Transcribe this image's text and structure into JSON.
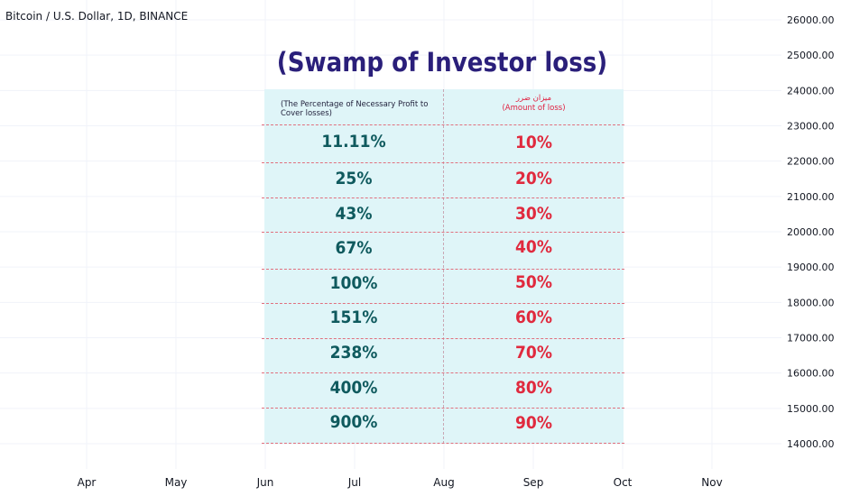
{
  "header": {
    "symbol": "Bitcoin / U.S. Dollar, 1D, BINANCE",
    "title": "(Swamp of Investor loss)"
  },
  "table": {
    "header_left": "(The Percentage of Necessary Profit to Cover losses)",
    "header_right_arabic": "میزان ضرر",
    "header_right_english": "(Amount of loss)",
    "rows": [
      {
        "profit": "11.11%",
        "loss": "10%"
      },
      {
        "profit": "25%",
        "loss": "20%"
      },
      {
        "profit": "43%",
        "loss": "30%"
      },
      {
        "profit": "67%",
        "loss": "40%"
      },
      {
        "profit": "100%",
        "loss": "50%"
      },
      {
        "profit": "151%",
        "loss": "60%"
      },
      {
        "profit": "238%",
        "loss": "70%"
      },
      {
        "profit": "400%",
        "loss": "80%"
      },
      {
        "profit": "900%",
        "loss": "90%"
      }
    ]
  },
  "colors": {
    "title": "#2a1f7a",
    "profit_text": "#0f5a5e",
    "loss_text": "#e02a3e",
    "table_bg": "#dff5f8",
    "separator": "#e0707e"
  },
  "chart_data": {
    "type": "table",
    "title": "(Swamp of Investor loss)",
    "x_ticks": [
      "Apr",
      "May",
      "Jun",
      "Jul",
      "Aug",
      "Sep",
      "Oct",
      "Nov"
    ],
    "y_ticks": [
      "26000.00",
      "25000.00",
      "24000.00",
      "23000.00",
      "22000.00",
      "21000.00",
      "20000.00",
      "19000.00",
      "18000.00",
      "17000.00",
      "16000.00",
      "15000.00",
      "14000.00"
    ],
    "ylim": [
      14000,
      26000
    ],
    "grid": true,
    "columns": [
      "(The Percentage of Necessary Profit to Cover losses)",
      "(Amount of loss)"
    ],
    "profit_percent": [
      11.11,
      25,
      43,
      67,
      100,
      151,
      238,
      400,
      900
    ],
    "loss_percent": [
      10,
      20,
      30,
      40,
      50,
      60,
      70,
      80,
      90
    ]
  }
}
